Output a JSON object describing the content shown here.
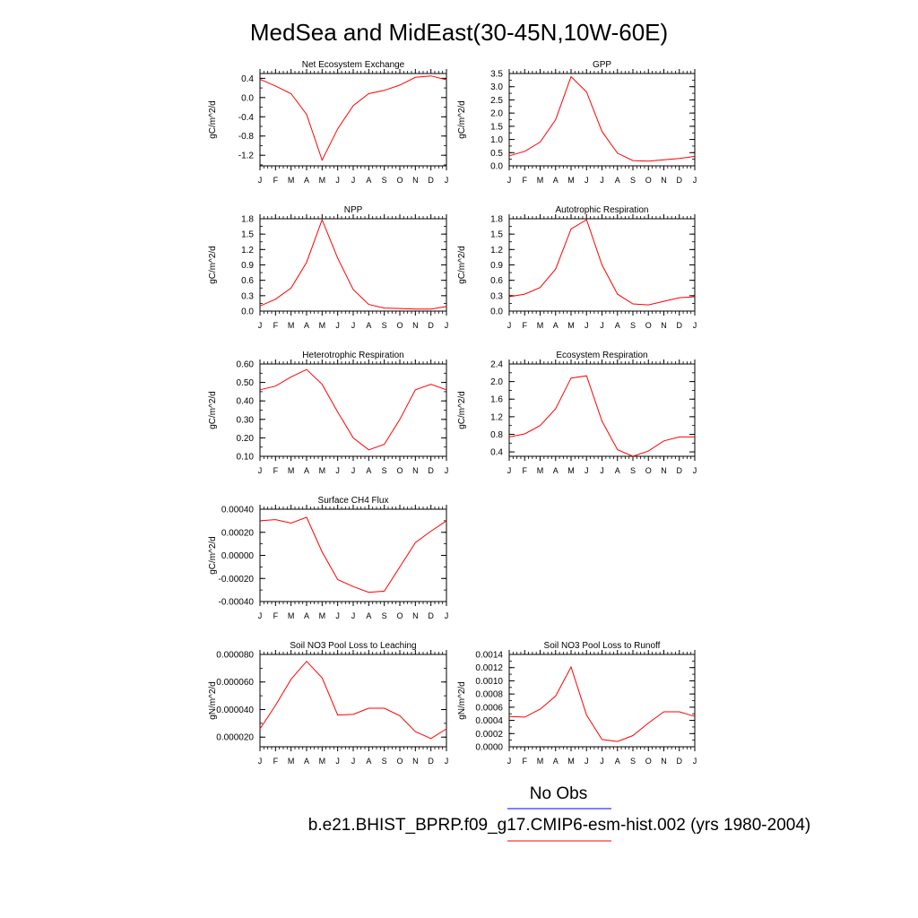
{
  "title": "MedSea and MidEast(30-45N,10W-60E)",
  "months": [
    "J",
    "F",
    "M",
    "A",
    "M",
    "J",
    "J",
    "A",
    "S",
    "O",
    "N",
    "D",
    "J"
  ],
  "colors": {
    "model": "#ff0000",
    "obs_line": "#0000ff",
    "model_line": "#ff0000",
    "axis": "#000000"
  },
  "legend": {
    "obs_label": "No Obs",
    "model_label": "b.e21.BHIST_BPRP.f09_g17.CMIP6-esm-hist.002 (yrs 1980-2004)"
  },
  "chart_data": [
    {
      "type": "line",
      "title": "Net Ecosystem Exchange",
      "ylabel": "gC/m^2/d",
      "ylim": [
        -1.42,
        0.5
      ],
      "yticks": [
        0.4,
        0.0,
        -0.4,
        -0.8,
        -1.2
      ],
      "ytick_labels": [
        "0.4",
        "0.0",
        "-0.4",
        "-0.8",
        "-1.2"
      ],
      "yminor": 0.2,
      "series": [
        {
          "values": [
            0.38,
            0.24,
            0.08,
            -0.35,
            -1.3,
            -0.65,
            -0.17,
            0.08,
            0.15,
            0.26,
            0.42,
            0.45,
            0.37
          ]
        }
      ]
    },
    {
      "type": "line",
      "title": "GPP",
      "ylabel": "gC/m^2/d",
      "ylim": [
        0.0,
        3.5
      ],
      "yticks": [
        0.0,
        0.5,
        1.0,
        1.5,
        2.0,
        2.5,
        3.0,
        3.5
      ],
      "ytick_labels": [
        "0.0",
        "0.5",
        "1.0",
        "1.5",
        "2.0",
        "2.5",
        "3.0",
        "3.5"
      ],
      "yminor": 0.25,
      "series": [
        {
          "values": [
            0.38,
            0.55,
            0.9,
            1.75,
            3.38,
            2.8,
            1.3,
            0.48,
            0.2,
            0.18,
            0.23,
            0.28,
            0.36
          ]
        }
      ]
    },
    {
      "type": "line",
      "title": "NPP",
      "ylabel": "gC/m^2/d",
      "ylim": [
        0.0,
        1.8
      ],
      "yticks": [
        0.0,
        0.3,
        0.6,
        0.9,
        1.2,
        1.5,
        1.8
      ],
      "ytick_labels": [
        "0.0",
        "0.3",
        "0.6",
        "0.9",
        "1.2",
        "1.5",
        "1.8"
      ],
      "yminor": 0.15,
      "series": [
        {
          "values": [
            0.1,
            0.23,
            0.45,
            0.95,
            1.78,
            1.03,
            0.42,
            0.13,
            0.06,
            0.05,
            0.04,
            0.04,
            0.09
          ]
        }
      ]
    },
    {
      "type": "line",
      "title": "Autotrophic Respiration",
      "ylabel": "gC/m^2/d",
      "ylim": [
        0.0,
        1.8
      ],
      "yticks": [
        0.0,
        0.3,
        0.6,
        0.9,
        1.2,
        1.5,
        1.8
      ],
      "ytick_labels": [
        "0.0",
        "0.3",
        "0.6",
        "0.9",
        "1.2",
        "1.5",
        "1.8"
      ],
      "yminor": 0.15,
      "series": [
        {
          "values": [
            0.28,
            0.33,
            0.46,
            0.82,
            1.6,
            1.78,
            0.9,
            0.33,
            0.14,
            0.12,
            0.19,
            0.26,
            0.28
          ]
        }
      ]
    },
    {
      "type": "line",
      "title": "Heterotrophic Respiration",
      "ylabel": "gC/m^2/d",
      "ylim": [
        0.1,
        0.6
      ],
      "yticks": [
        0.1,
        0.2,
        0.3,
        0.4,
        0.5,
        0.6
      ],
      "ytick_labels": [
        "0.10",
        "0.20",
        "0.30",
        "0.40",
        "0.50",
        "0.60"
      ],
      "yminor": 0.05,
      "series": [
        {
          "values": [
            0.46,
            0.48,
            0.53,
            0.57,
            0.49,
            0.34,
            0.2,
            0.135,
            0.165,
            0.3,
            0.46,
            0.49,
            0.46
          ]
        }
      ]
    },
    {
      "type": "line",
      "title": "Ecosystem Respiration",
      "ylabel": "gC/m^2/d",
      "ylim": [
        0.3,
        2.4
      ],
      "yticks": [
        0.4,
        0.8,
        1.2,
        1.6,
        2.0,
        2.4
      ],
      "ytick_labels": [
        "0.4",
        "0.8",
        "1.2",
        "1.6",
        "2.0",
        "2.4"
      ],
      "yminor": 0.2,
      "series": [
        {
          "values": [
            0.74,
            0.81,
            1.0,
            1.38,
            2.08,
            2.13,
            1.1,
            0.45,
            0.3,
            0.42,
            0.65,
            0.74,
            0.74
          ]
        }
      ]
    },
    {
      "type": "line",
      "title": "Surface CH4 Flux",
      "ylabel": "gC/m^2/d",
      "ylim": [
        -0.0004,
        0.0004
      ],
      "yticks": [
        0.0004,
        0.0002,
        0.0,
        -0.0002,
        -0.0004
      ],
      "ytick_labels": [
        "0.00040",
        "0.00020",
        "0.00000",
        "-0.00020",
        "-0.00040"
      ],
      "yminor": 0.0001,
      "series": [
        {
          "values": [
            0.0003,
            0.00031,
            0.00028,
            0.00033,
            3e-05,
            -0.00021,
            -0.00027,
            -0.00032,
            -0.00031,
            -0.0001,
            0.00011,
            0.00021,
            0.0003
          ]
        }
      ]
    },
    {
      "type": "line",
      "title": "Soil NO3 Pool Loss to Leaching",
      "ylabel": "gN/m^2/d",
      "ylim": [
        1.3e-05,
        8e-05
      ],
      "yticks": [
        2e-05,
        4e-05,
        6e-05,
        8e-05
      ],
      "ytick_labels": [
        "0.000020",
        "0.000040",
        "0.000060",
        "0.000080"
      ],
      "yminor": 1e-05,
      "series": [
        {
          "values": [
            2.6e-05,
            4.3e-05,
            6.2e-05,
            7.5e-05,
            6.3e-05,
            3.6e-05,
            3.65e-05,
            4.1e-05,
            4.1e-05,
            3.55e-05,
            2.4e-05,
            1.9e-05,
            2.6e-05
          ]
        }
      ]
    },
    {
      "type": "line",
      "title": "Soil NO3 Pool Loss to Runoff",
      "ylabel": "gN/m^2/d",
      "ylim": [
        0.0,
        0.0014
      ],
      "yticks": [
        0.0,
        0.0002,
        0.0004,
        0.0006,
        0.0008,
        0.001,
        0.0012,
        0.0014
      ],
      "ytick_labels": [
        "0.0000",
        "0.0002",
        "0.0004",
        "0.0006",
        "0.0008",
        "0.0010",
        "0.0012",
        "0.0014"
      ],
      "yminor": 0.0001,
      "series": [
        {
          "values": [
            0.00046,
            0.00045,
            0.00057,
            0.00077,
            0.00121,
            0.00048,
            0.00011,
            8e-05,
            0.00017,
            0.00036,
            0.00053,
            0.00053,
            0.00046
          ]
        }
      ]
    }
  ]
}
